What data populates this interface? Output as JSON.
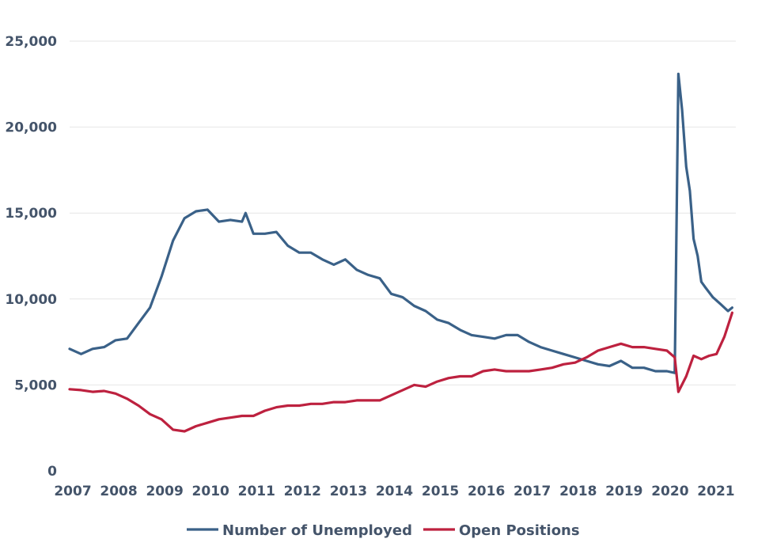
{
  "chart_data": {
    "type": "line",
    "title": "",
    "xlabel": "",
    "ylabel": "",
    "x_range": [
      2007,
      2021.5
    ],
    "ylim": [
      0,
      25000
    ],
    "y_ticks": [
      0,
      5000,
      10000,
      15000,
      20000,
      25000
    ],
    "y_tick_labels": [
      "0",
      "5,000",
      "10,000",
      "15,000",
      "20,000",
      "25,000"
    ],
    "x_ticks": [
      2007,
      2008,
      2009,
      2010,
      2011,
      2012,
      2013,
      2014,
      2015,
      2016,
      2017,
      2018,
      2019,
      2020,
      2021
    ],
    "x_tick_labels": [
      "2007",
      "2008",
      "2009",
      "2010",
      "2011",
      "2012",
      "2013",
      "2014",
      "2015",
      "2016",
      "2017",
      "2018",
      "2019",
      "2020",
      "2021"
    ],
    "grid": "horizontal",
    "legend": "bottom-center",
    "series": [
      {
        "name": "Number of Unemployed",
        "color": "#3a6188",
        "x": [
          2007.0,
          2007.25,
          2007.5,
          2007.75,
          2008.0,
          2008.25,
          2008.5,
          2008.75,
          2009.0,
          2009.25,
          2009.5,
          2009.75,
          2010.0,
          2010.25,
          2010.5,
          2010.75,
          2010.83,
          2011.0,
          2011.25,
          2011.5,
          2011.75,
          2012.0,
          2012.25,
          2012.5,
          2012.75,
          2013.0,
          2013.25,
          2013.5,
          2013.75,
          2014.0,
          2014.25,
          2014.5,
          2014.75,
          2015.0,
          2015.25,
          2015.5,
          2015.75,
          2016.0,
          2016.25,
          2016.5,
          2016.75,
          2017.0,
          2017.25,
          2017.5,
          2017.75,
          2018.0,
          2018.25,
          2018.5,
          2018.75,
          2019.0,
          2019.25,
          2019.5,
          2019.75,
          2020.0,
          2020.17,
          2020.25,
          2020.33,
          2020.42,
          2020.5,
          2020.58,
          2020.67,
          2020.75,
          2020.83,
          2021.0,
          2021.17,
          2021.33,
          2021.42
        ],
        "values": [
          7100,
          6800,
          7100,
          7200,
          7600,
          7700,
          8600,
          9500,
          11300,
          13400,
          14700,
          15100,
          15200,
          14500,
          14600,
          14500,
          15000,
          13800,
          13800,
          13900,
          13100,
          12700,
          12700,
          12300,
          12000,
          12300,
          11700,
          11400,
          11200,
          10300,
          10100,
          9600,
          9300,
          8800,
          8600,
          8200,
          7900,
          7800,
          7700,
          7900,
          7900,
          7500,
          7200,
          7000,
          6800,
          6600,
          6400,
          6200,
          6100,
          6400,
          6000,
          6000,
          5800,
          5800,
          5700,
          23100,
          21000,
          17700,
          16300,
          13500,
          12500,
          11000,
          10700,
          10100,
          9700,
          9300,
          9500
        ]
      },
      {
        "name": "Open Positions",
        "color": "#bd213f",
        "x": [
          2007.0,
          2007.25,
          2007.5,
          2007.75,
          2008.0,
          2008.25,
          2008.5,
          2008.75,
          2009.0,
          2009.25,
          2009.5,
          2009.75,
          2010.0,
          2010.25,
          2010.5,
          2010.75,
          2011.0,
          2011.25,
          2011.5,
          2011.75,
          2012.0,
          2012.25,
          2012.5,
          2012.75,
          2013.0,
          2013.25,
          2013.5,
          2013.75,
          2014.0,
          2014.25,
          2014.5,
          2014.75,
          2015.0,
          2015.25,
          2015.5,
          2015.75,
          2016.0,
          2016.25,
          2016.5,
          2016.75,
          2017.0,
          2017.25,
          2017.5,
          2017.75,
          2018.0,
          2018.25,
          2018.5,
          2018.75,
          2019.0,
          2019.25,
          2019.5,
          2019.75,
          2020.0,
          2020.17,
          2020.25,
          2020.42,
          2020.58,
          2020.75,
          2020.92,
          2021.08,
          2021.25,
          2021.42
        ],
        "values": [
          4750,
          4700,
          4600,
          4650,
          4500,
          4200,
          3800,
          3300,
          3000,
          2400,
          2300,
          2600,
          2800,
          3000,
          3100,
          3200,
          3200,
          3500,
          3700,
          3800,
          3800,
          3900,
          3900,
          4000,
          4000,
          4100,
          4100,
          4100,
          4400,
          4700,
          5000,
          4900,
          5200,
          5400,
          5500,
          5500,
          5800,
          5900,
          5800,
          5800,
          5800,
          5900,
          6000,
          6200,
          6300,
          6600,
          7000,
          7200,
          7400,
          7200,
          7200,
          7100,
          7000,
          6600,
          4600,
          5500,
          6700,
          6500,
          6700,
          6800,
          7800,
          9200
        ]
      }
    ]
  }
}
